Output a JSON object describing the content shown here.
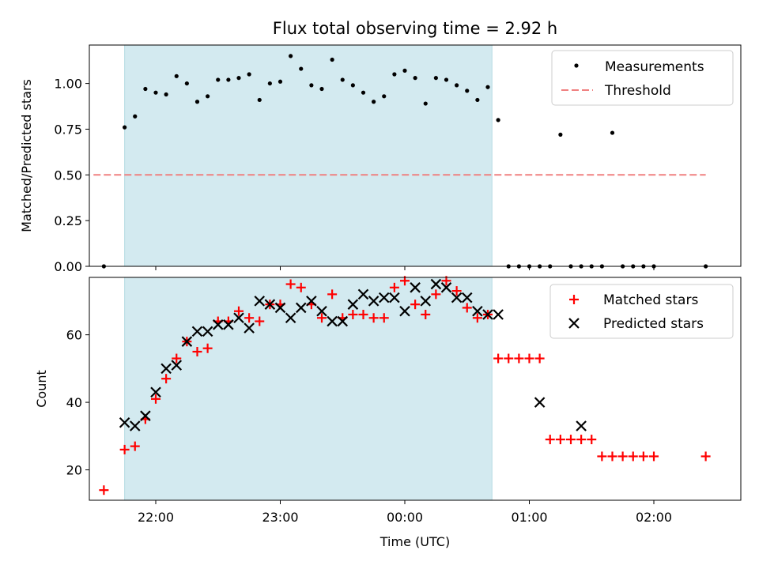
{
  "chart_data": [
    {
      "type": "scatter",
      "title": "Flux total observing time = 2.92 h",
      "ylabel": "Matched/Predicted stars",
      "xlabel": "",
      "ylim": [
        0,
        1.21
      ],
      "yticks": [
        "0.00",
        "0.25",
        "0.50",
        "0.75",
        "1.00"
      ],
      "ytick_values": [
        0,
        0.25,
        0.5,
        0.75,
        1.0
      ],
      "xticks": [
        "22:00",
        "23:00",
        "00:00",
        "01:00",
        "02:00"
      ],
      "shaded_span": {
        "start": "21:45",
        "end": "00:42",
        "color": "#d3eaf0"
      },
      "legend": {
        "placement": "top-right",
        "entries": [
          "Measurements",
          "Threshold"
        ]
      },
      "threshold": {
        "name": "Threshold",
        "value": 0.5,
        "x_start": "21:30",
        "x_end": "02:25",
        "color": "#f08080"
      },
      "series": [
        {
          "name": "Measurements",
          "marker": "dot",
          "color": "#000000",
          "x": [
            "21:35",
            "21:45",
            "21:50",
            "21:55",
            "22:00",
            "22:05",
            "22:10",
            "22:15",
            "22:20",
            "22:25",
            "22:30",
            "22:35",
            "22:40",
            "22:45",
            "22:50",
            "22:55",
            "23:00",
            "23:05",
            "23:10",
            "23:15",
            "23:20",
            "23:25",
            "23:30",
            "23:35",
            "23:40",
            "23:45",
            "23:50",
            "23:55",
            "00:00",
            "00:05",
            "00:10",
            "00:15",
            "00:20",
            "00:25",
            "00:30",
            "00:35",
            "00:40",
            "00:45",
            "00:50",
            "00:55",
            "01:00",
            "01:05",
            "01:10",
            "01:15",
            "01:20",
            "01:25",
            "01:30",
            "01:35",
            "01:40",
            "01:45",
            "01:50",
            "01:55",
            "02:00",
            "02:25"
          ],
          "y": [
            0,
            0.76,
            0.82,
            0.97,
            0.95,
            0.94,
            1.04,
            1.0,
            0.9,
            0.93,
            1.02,
            1.02,
            1.03,
            1.05,
            0.91,
            1.0,
            1.01,
            1.15,
            1.08,
            0.99,
            0.97,
            1.13,
            1.02,
            0.99,
            0.95,
            0.9,
            0.93,
            1.05,
            1.07,
            1.03,
            0.89,
            1.03,
            1.02,
            0.99,
            0.96,
            0.91,
            0.98,
            0.8,
            0,
            0,
            0,
            0,
            0,
            0.72,
            0,
            0,
            0,
            0,
            0.73,
            0,
            0,
            0,
            0,
            0
          ]
        }
      ]
    },
    {
      "type": "scatter",
      "title": "",
      "ylabel": "Count",
      "xlabel": "Time (UTC)",
      "ylim": [
        11,
        77
      ],
      "yticks": [
        "20",
        "40",
        "60"
      ],
      "ytick_values": [
        20,
        40,
        60
      ],
      "xticks": [
        "22:00",
        "23:00",
        "00:00",
        "01:00",
        "02:00"
      ],
      "shaded_span": {
        "start": "21:45",
        "end": "00:42",
        "color": "#d3eaf0"
      },
      "legend": {
        "placement": "top-right",
        "entries": [
          "Matched stars",
          "Predicted stars"
        ]
      },
      "series": [
        {
          "name": "Matched stars",
          "marker": "plus",
          "color": "#ff0000",
          "x": [
            "21:35",
            "21:45",
            "21:50",
            "21:55",
            "22:00",
            "22:05",
            "22:10",
            "22:15",
            "22:20",
            "22:25",
            "22:30",
            "22:35",
            "22:40",
            "22:45",
            "22:50",
            "22:55",
            "23:00",
            "23:05",
            "23:10",
            "23:15",
            "23:20",
            "23:25",
            "23:30",
            "23:35",
            "23:40",
            "23:45",
            "23:50",
            "23:55",
            "00:00",
            "00:05",
            "00:10",
            "00:15",
            "00:20",
            "00:25",
            "00:30",
            "00:35",
            "00:40",
            "00:45",
            "00:50",
            "00:55",
            "01:00",
            "01:05",
            "01:10",
            "01:15",
            "01:20",
            "01:25",
            "01:30",
            "01:35",
            "01:40",
            "01:45",
            "01:50",
            "01:55",
            "02:00",
            "02:25"
          ],
          "y": [
            14,
            26,
            27,
            35,
            41,
            47,
            53,
            58,
            55,
            56,
            64,
            64,
            67,
            65,
            64,
            69,
            69,
            75,
            74,
            69,
            65,
            72,
            65,
            66,
            66,
            65,
            65,
            74,
            76,
            69,
            66,
            72,
            76,
            73,
            68,
            65,
            66,
            53,
            53,
            53,
            53,
            53,
            29,
            29,
            29,
            29,
            29,
            24,
            24,
            24,
            24,
            24,
            24,
            24
          ]
        },
        {
          "name": "Predicted stars",
          "marker": "x",
          "color": "#000000",
          "x": [
            "21:45",
            "21:50",
            "21:55",
            "22:00",
            "22:05",
            "22:10",
            "22:15",
            "22:20",
            "22:25",
            "22:30",
            "22:35",
            "22:40",
            "22:45",
            "22:50",
            "22:55",
            "23:00",
            "23:05",
            "23:10",
            "23:15",
            "23:20",
            "23:25",
            "23:30",
            "23:35",
            "23:40",
            "23:45",
            "23:50",
            "23:55",
            "00:00",
            "00:05",
            "00:10",
            "00:15",
            "00:20",
            "00:25",
            "00:30",
            "00:35",
            "00:40",
            "00:45",
            "01:05",
            "01:25"
          ],
          "y": [
            34,
            33,
            36,
            43,
            50,
            51,
            58,
            61,
            61,
            63,
            63,
            65,
            62,
            70,
            69,
            68,
            65,
            68,
            70,
            67,
            64,
            64,
            69,
            72,
            70,
            71,
            71,
            67,
            74,
            70,
            75,
            74,
            71,
            71,
            67,
            66,
            66,
            40,
            33
          ]
        }
      ]
    }
  ]
}
